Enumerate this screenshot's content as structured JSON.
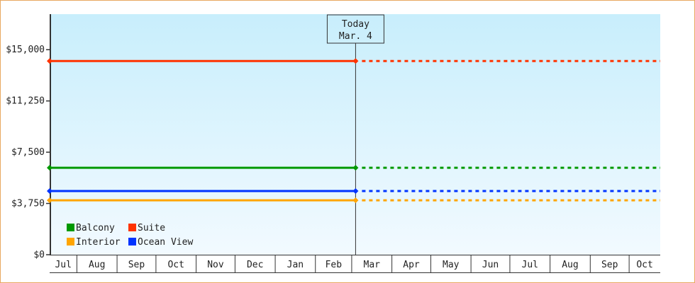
{
  "chart_data": {
    "type": "line",
    "title": "",
    "xlabel": "",
    "ylabel": "",
    "ylim": [
      0,
      17600
    ],
    "yticks": [
      0,
      3750,
      7500,
      11250,
      15000
    ],
    "ytick_labels": [
      "$0",
      "$3,750",
      "$7,500",
      "$11,250",
      "$15,000"
    ],
    "xlim": [
      "Jul 11",
      "Oct 25"
    ],
    "x_tick_labels": [
      "Jul",
      "Aug",
      "Sep",
      "Oct",
      "Nov",
      "Dec",
      "Jan",
      "Feb",
      "Mar",
      "Apr",
      "May",
      "Jun",
      "Jul",
      "Aug",
      "Sep",
      "Oct"
    ],
    "today_marker": {
      "line1": "Today",
      "line2": "Mar. 4"
    },
    "series": [
      {
        "name": "Suite",
        "color": "#ff3300",
        "points": [
          {
            "x": "Jul 11",
            "y": 14170
          },
          {
            "x": "Mar 4",
            "y": 14170
          }
        ],
        "forecast_to": "Oct 25"
      },
      {
        "name": "Balcony",
        "color": "#009900",
        "points": [
          {
            "x": "Jul 11",
            "y": 6360
          },
          {
            "x": "Mar 4",
            "y": 6360
          }
        ],
        "forecast_to": "Oct 25"
      },
      {
        "name": "Ocean View",
        "color": "#0033ff",
        "points": [
          {
            "x": "Jul 11",
            "y": 4660
          },
          {
            "x": "Mar 4",
            "y": 4660
          }
        ],
        "forecast_to": "Oct 25"
      },
      {
        "name": "Interior",
        "color": "#ffa500",
        "points": [
          {
            "x": "Jul 11",
            "y": 3980
          },
          {
            "x": "Mar 4",
            "y": 3980
          }
        ],
        "forecast_to": "Oct 25"
      }
    ],
    "legend": {
      "placement": "bottom-left",
      "order": [
        "Balcony",
        "Suite",
        "Interior",
        "Ocean View"
      ]
    },
    "grid": false,
    "background_gradient": [
      "#c8eefc",
      "#f2faff"
    ]
  }
}
